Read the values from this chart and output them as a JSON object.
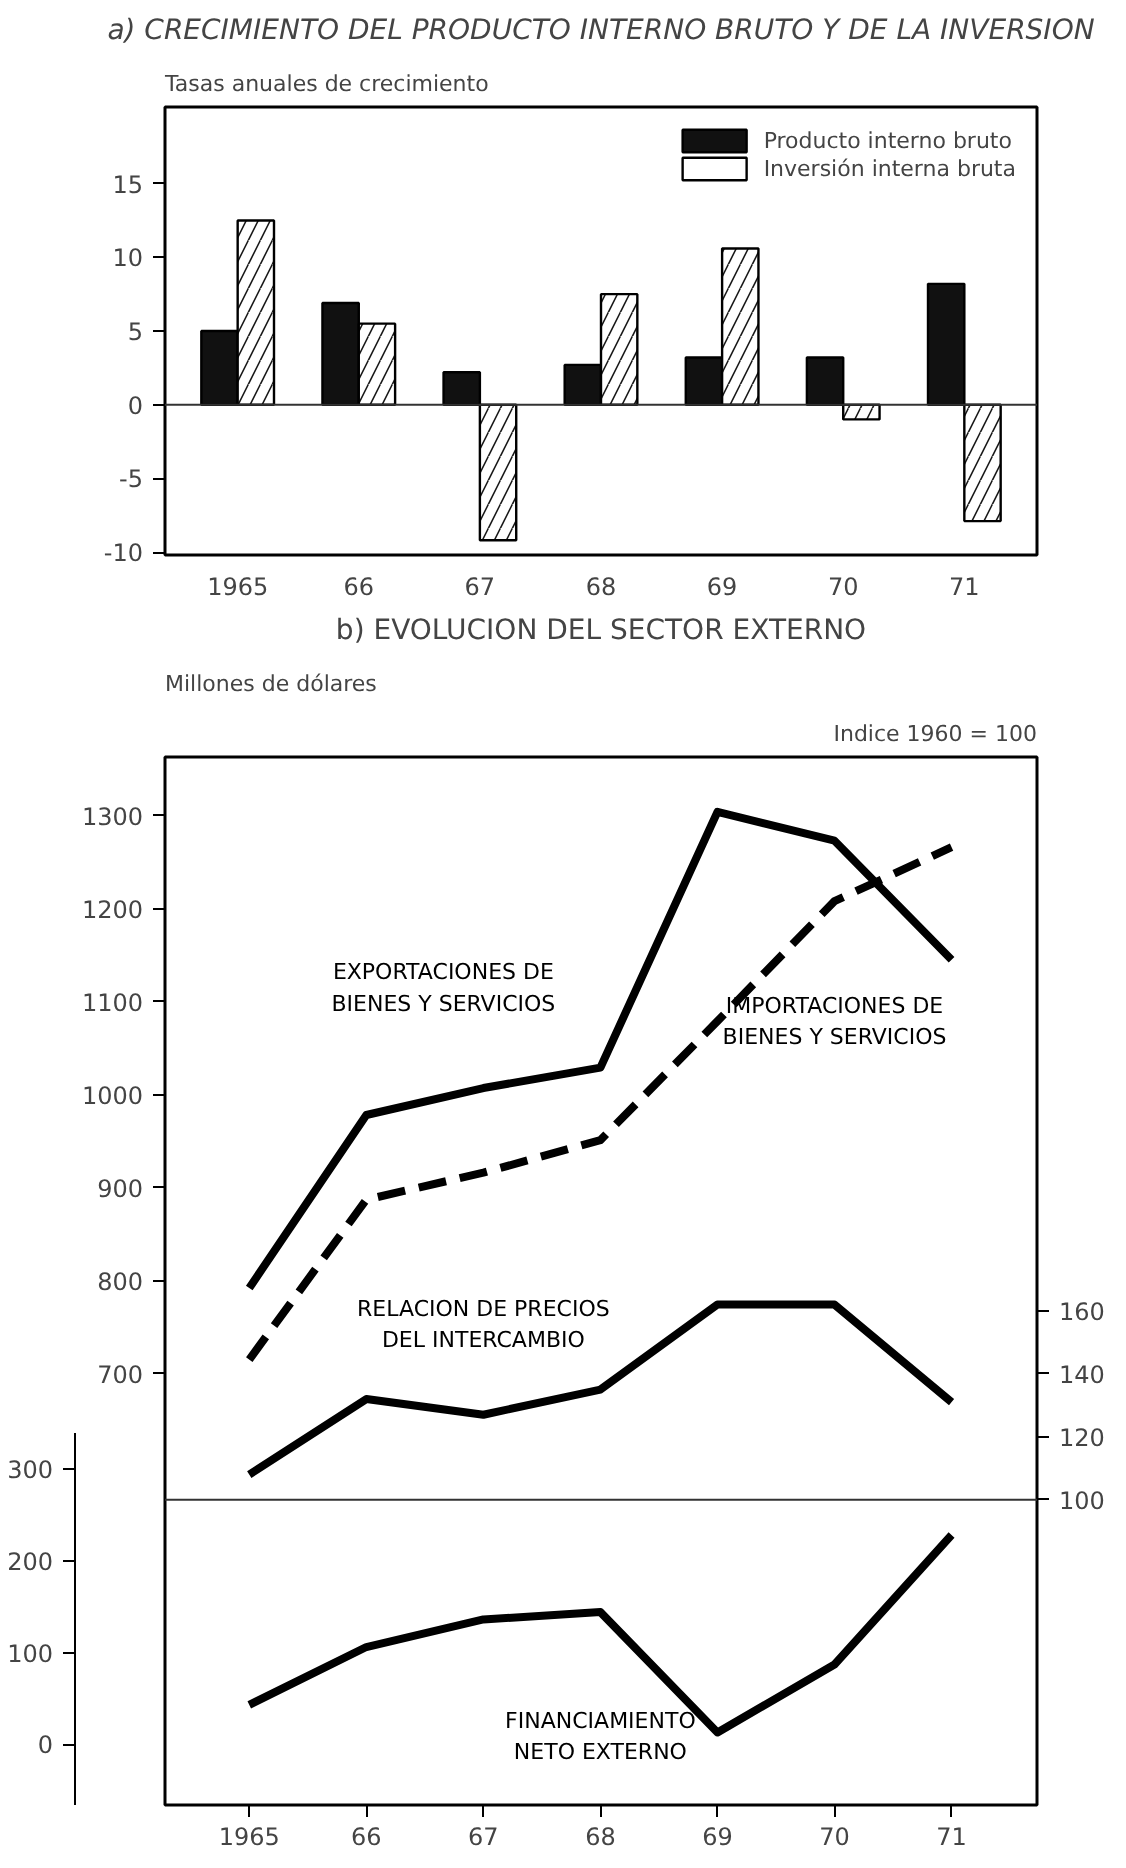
{
  "chart_data": [
    {
      "type": "bar",
      "title": "a) CRECIMIENTO DEL PRODUCTO INTERNO BRUTO Y DE LA INVERSION",
      "ylabel": "Tasas anuales de crecimiento",
      "categories": [
        "1965",
        "66",
        "67",
        "68",
        "69",
        "70",
        "71"
      ],
      "series": [
        {
          "name": "Producto interno bruto",
          "color": "#111111",
          "values": [
            5.0,
            6.9,
            2.2,
            2.7,
            3.2,
            3.2,
            8.2
          ]
        },
        {
          "name": "Inversión interna bruta",
          "color": "#ffffff",
          "values": [
            12.5,
            5.5,
            -9.2,
            7.5,
            10.6,
            -1.0,
            -7.9
          ]
        }
      ],
      "ylim": [
        -10.2,
        20.2
      ],
      "yticks": [
        -10,
        -5,
        0,
        5,
        10,
        15
      ],
      "ref_lines": [
        {
          "axis": "y",
          "value": 0
        }
      ],
      "grid": false,
      "legend": "top right"
    },
    {
      "type": "line",
      "title": "b) EVOLUCION DEL SECTOR EXTERNO",
      "ylabel": "Millones de dólares",
      "y2label": "Indice 1960 = 100",
      "x": [
        1965,
        1966,
        1967,
        1968,
        1969,
        1970,
        1971
      ],
      "series": [
        {
          "name": "EXPORTACIONES DE BIENES Y SERVICIOS",
          "color": "#000000",
          "line_style": "solid",
          "values": [
            792,
            978,
            1007,
            1029,
            1304,
            1273,
            1145
          ]
        },
        {
          "name": "IMPORTACIONES DE BIENES Y SERVICIOS",
          "color": "#000000",
          "line_style": "dashed",
          "values": [
            715,
            887,
            916,
            951,
            1079,
            1208,
            1266
          ]
        },
        {
          "name": "RELACION DE PRECIOS DEL INTERCAMBIO",
          "color": "#000000",
          "line_style": "solid",
          "axis": "y2",
          "values": [
            108,
            132,
            127,
            135,
            162,
            162,
            131
          ]
        },
        {
          "name": "FINANCIAMIENTO NETO EXTERNO",
          "color": "#000000",
          "line_style": "solid",
          "axis": "y3",
          "values": [
            43,
            106,
            136,
            144,
            13,
            87,
            228
          ]
        }
      ],
      "xlim": [
        1964.28,
        1971.73
      ],
      "xticks": [
        {
          "value": 1965,
          "label": "1965"
        },
        {
          "value": 1966,
          "label": "66"
        },
        {
          "value": 1967,
          "label": "67"
        },
        {
          "value": 1968,
          "label": "68"
        },
        {
          "value": 1969,
          "label": "69"
        },
        {
          "value": 1970,
          "label": "70"
        },
        {
          "value": 1971,
          "label": "71"
        }
      ],
      "ylim": [
        236,
        1363
      ],
      "yticks": [
        700,
        800,
        900,
        1000,
        1100,
        1200,
        1300
      ],
      "y3lim": [
        -66,
        1075
      ],
      "y3ticks": [
        0,
        100,
        200,
        300
      ],
      "y2lim": [
        3,
        336
      ],
      "y2ticks": [
        100,
        120,
        140,
        160
      ],
      "ref_lines": [
        {
          "axis": "y2",
          "value": 100
        }
      ],
      "grid": false,
      "legend": false,
      "marker": "none"
    }
  ]
}
